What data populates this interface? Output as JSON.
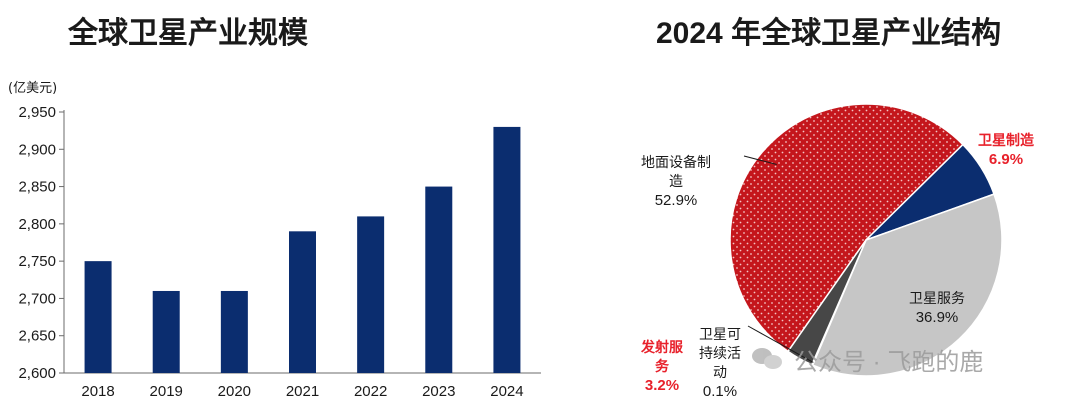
{
  "bar_chart": {
    "title": "全球卫星产业规模",
    "unit": "(亿美元)"
  },
  "pie_chart": {
    "title": "2024 年全球卫星产业结构"
  },
  "watermark": {
    "text": "公众号 · 飞跑的鹿"
  },
  "colors": {
    "bar": "#0b2d6f",
    "ground_equipment": "#c4161c",
    "satellite_manufacturing": "#0b2d6f",
    "satellite_services": "#c6c6c6",
    "launch_services": "#474747",
    "sustained_activity": "#8a8a8a",
    "highlight_label": "#e8212b"
  },
  "chart_data": [
    {
      "type": "bar",
      "title": "全球卫星产业规模",
      "ylabel": "(亿美元)",
      "categories": [
        "2018",
        "2019",
        "2020",
        "2021",
        "2022",
        "2023",
        "2024"
      ],
      "values": [
        2750,
        2710,
        2710,
        2790,
        2810,
        2850,
        2930
      ],
      "ylim": [
        2600,
        2950
      ],
      "yticks": [
        "2,600",
        "2,650",
        "2,700",
        "2,750",
        "2,800",
        "2,850",
        "2,900",
        "2,950"
      ],
      "grid": false
    },
    {
      "type": "pie",
      "title": "2024 年全球卫星产业结构",
      "slices": [
        {
          "label_lines": [
            "地面设备制",
            "造"
          ],
          "value_label": "52.9%",
          "value": 52.9,
          "color_key": "ground_equipment",
          "highlight": false
        },
        {
          "label_lines": [
            "卫星制造"
          ],
          "value_label": "6.9%",
          "value": 6.9,
          "color_key": "satellite_manufacturing",
          "highlight": true
        },
        {
          "label_lines": [
            "卫星服务"
          ],
          "value_label": "36.9%",
          "value": 36.9,
          "color_key": "satellite_services",
          "highlight": false
        },
        {
          "label_lines": [
            "卫星可",
            "持续活",
            "动"
          ],
          "value_label": "0.1%",
          "value": 0.1,
          "color_key": "sustained_activity",
          "highlight": false
        },
        {
          "label_lines": [
            "发射服",
            "务"
          ],
          "value_label": "3.2%",
          "value": 3.2,
          "color_key": "launch_services",
          "highlight": true
        }
      ]
    }
  ]
}
